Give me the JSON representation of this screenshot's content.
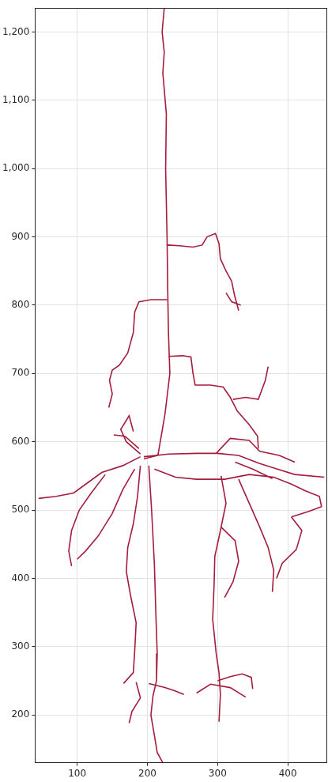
{
  "chart_data": {
    "type": "line",
    "color": "#a51c3c",
    "grid": true,
    "xlim": [
      40,
      455
    ],
    "ylim": [
      130,
      1235
    ],
    "xticks": [
      100,
      200,
      300,
      400
    ],
    "yticks": [
      200,
      300,
      400,
      500,
      600,
      700,
      800,
      900,
      1000,
      1100,
      1200
    ],
    "x": [
      195,
      215,
      225,
      232,
      230,
      229,
      228,
      226,
      227,
      222,
      224,
      221,
      224,
      224,
      229,
      245,
      265,
      278,
      285,
      297,
      302,
      304,
      312,
      320,
      324,
      330,
      330,
      312,
      320,
      333,
      333,
      228,
      205,
      188,
      182,
      180,
      172,
      160,
      150,
      146,
      150,
      145,
      145,
      230,
      250,
      262,
      265,
      268,
      290,
      308,
      318,
      328,
      345,
      357,
      358,
      358,
      322,
      340,
      358,
      368,
      372,
      372,
      195,
      230,
      270,
      300,
      330,
      360,
      385,
      410,
      452,
      452,
      210,
      240,
      270,
      310,
      345,
      380,
      405,
      425,
      445,
      448,
      430,
      405,
      405,
      190,
      165,
      135,
      115,
      95,
      70,
      45,
      45,
      140,
      120,
      103,
      92,
      88,
      92,
      92,
      182,
      165,
      150,
      130,
      112,
      100,
      100,
      190,
      186,
      180,
      172,
      170,
      176,
      184,
      182,
      180,
      166,
      166,
      202,
      206,
      210,
      212,
      214,
      213,
      208,
      205,
      210,
      214,
      222,
      222,
      184,
      190,
      178,
      174,
      174,
      202,
      225,
      240,
      252,
      252,
      305,
      312,
      303,
      296,
      295,
      293,
      298,
      302,
      304,
      302,
      302,
      300,
      318,
      335,
      348,
      350,
      350,
      270,
      290,
      318,
      340,
      340,
      330,
      345,
      360,
      372,
      380,
      378,
      378,
      405,
      420,
      412,
      392,
      384,
      384,
      305,
      325,
      330,
      322,
      310,
      310,
      190,
      170,
      162,
      174,
      180,
      180,
      188,
      168,
      152,
      152,
      298,
      318,
      345,
      360,
      388,
      410,
      410,
      325,
      350,
      378
    ],
    "values": [
      575,
      580,
      640,
      700,
      760,
      820,
      900,
      1000,
      1080,
      1140,
      1170,
      1200,
      1235,
      null,
      888,
      887,
      885,
      888,
      900,
      905,
      890,
      868,
      850,
      835,
      815,
      792,
      null,
      818,
      805,
      800,
      null,
      808,
      808,
      805,
      790,
      760,
      730,
      712,
      705,
      690,
      670,
      650,
      null,
      725,
      726,
      724,
      700,
      683,
      683,
      680,
      665,
      645,
      625,
      608,
      590,
      null,
      662,
      665,
      662,
      690,
      710,
      null,
      578,
      582,
      583,
      583,
      580,
      568,
      560,
      552,
      548,
      null,
      560,
      548,
      545,
      545,
      552,
      548,
      538,
      528,
      520,
      505,
      498,
      490,
      null,
      578,
      565,
      555,
      540,
      525,
      520,
      517,
      null,
      552,
      525,
      500,
      470,
      440,
      418,
      null,
      560,
      530,
      495,
      462,
      440,
      428,
      null,
      565,
      520,
      480,
      445,
      410,
      375,
      335,
      295,
      262,
      246,
      null,
      565,
      500,
      420,
      350,
      290,
      250,
      228,
      200,
      170,
      145,
      130,
      null,
      248,
      225,
      205,
      188,
      null,
      246,
      240,
      235,
      230,
      null,
      550,
      510,
      465,
      432,
      390,
      340,
      290,
      262,
      230,
      190,
      null,
      250,
      256,
      260,
      255,
      238,
      null,
      232,
      245,
      240,
      226,
      null,
      545,
      510,
      475,
      445,
      412,
      380,
      null,
      490,
      470,
      442,
      422,
      400,
      null,
      475,
      455,
      425,
      395,
      372,
      null,
      582,
      600,
      618,
      638,
      615,
      null,
      590,
      608,
      610,
      null,
      583,
      605,
      602,
      586,
      580,
      570,
      null,
      570,
      560,
      546
    ]
  }
}
